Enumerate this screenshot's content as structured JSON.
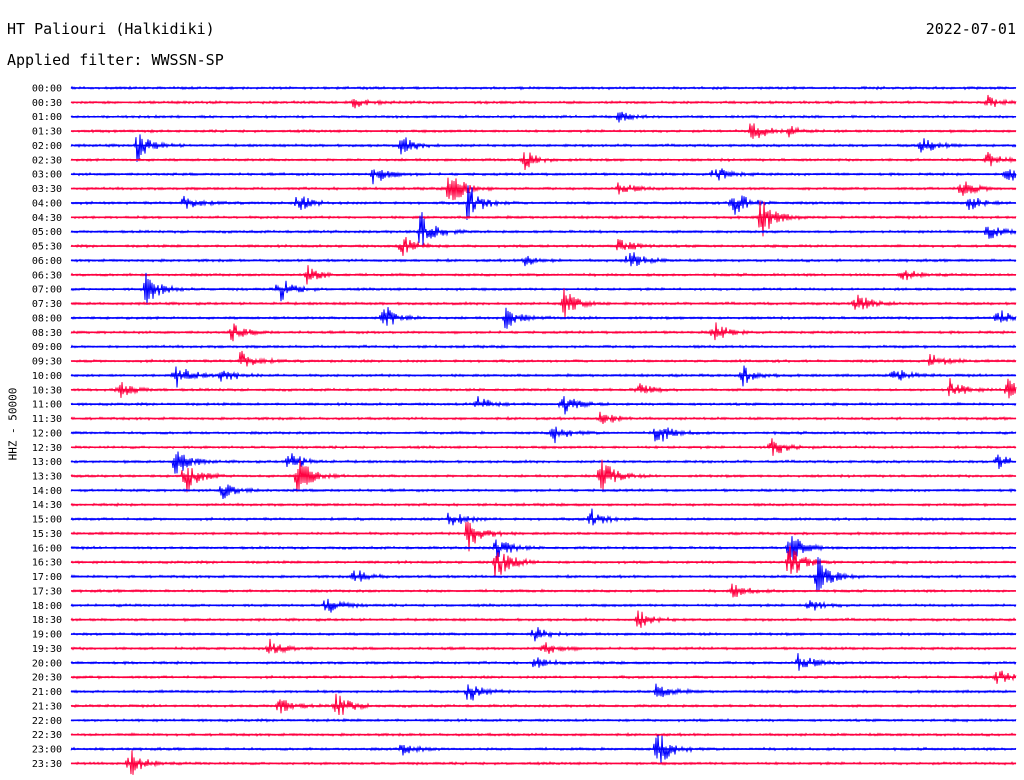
{
  "header": {
    "station": "HT Paliouri (Halkidiki)",
    "date": "2022-07-01",
    "filter": "Applied filter: WWSSN-SP"
  },
  "chart_data": {
    "type": "line",
    "title": "HT Paliouri (Halkidiki)",
    "subtitle": "Applied filter: WWSSN-SP",
    "ylabel": "HHZ - 50000",
    "xlabel": "",
    "colors": [
      "#0000ff",
      "#ff0040"
    ],
    "grid": false,
    "legend": "none",
    "rows": [
      {
        "label": "00:00",
        "events": []
      },
      {
        "label": "00:30",
        "events": [
          [
            0.3,
            0.35
          ],
          [
            0.97,
            0.3
          ]
        ]
      },
      {
        "label": "01:00",
        "events": [
          [
            0.58,
            0.25
          ]
        ]
      },
      {
        "label": "01:30",
        "events": [
          [
            0.72,
            0.55
          ],
          [
            0.76,
            0.25
          ]
        ]
      },
      {
        "label": "02:00",
        "events": [
          [
            0.07,
            0.75
          ],
          [
            0.35,
            0.45
          ],
          [
            0.9,
            0.45
          ]
        ]
      },
      {
        "label": "02:30",
        "events": [
          [
            0.48,
            0.45
          ],
          [
            0.97,
            0.35
          ]
        ]
      },
      {
        "label": "03:00",
        "events": [
          [
            0.32,
            0.55
          ],
          [
            0.68,
            0.45
          ],
          [
            0.99,
            0.55
          ]
        ]
      },
      {
        "label": "03:30",
        "events": [
          [
            0.4,
            1.0
          ],
          [
            0.58,
            0.35
          ],
          [
            0.94,
            0.5
          ]
        ]
      },
      {
        "label": "04:00",
        "events": [
          [
            0.12,
            0.45
          ],
          [
            0.24,
            0.45
          ],
          [
            0.42,
            1.0
          ],
          [
            0.7,
            0.75
          ],
          [
            0.95,
            0.4
          ]
        ]
      },
      {
        "label": "04:30",
        "events": [
          [
            0.73,
            1.0
          ]
        ]
      },
      {
        "label": "05:00",
        "events": [
          [
            0.37,
            1.0
          ],
          [
            0.97,
            0.4
          ]
        ]
      },
      {
        "label": "05:30",
        "events": [
          [
            0.35,
            0.55
          ],
          [
            0.58,
            0.45
          ]
        ]
      },
      {
        "label": "06:00",
        "events": [
          [
            0.59,
            0.55
          ],
          [
            0.48,
            0.3
          ]
        ]
      },
      {
        "label": "06:30",
        "events": [
          [
            0.25,
            0.45
          ],
          [
            0.88,
            0.35
          ]
        ]
      },
      {
        "label": "07:00",
        "events": [
          [
            0.08,
            0.9
          ],
          [
            0.22,
            0.65
          ]
        ]
      },
      {
        "label": "07:30",
        "events": [
          [
            0.52,
            0.8
          ],
          [
            0.83,
            0.6
          ]
        ]
      },
      {
        "label": "08:00",
        "events": [
          [
            0.33,
            0.7
          ],
          [
            0.46,
            0.55
          ],
          [
            0.98,
            0.45
          ]
        ]
      },
      {
        "label": "08:30",
        "events": [
          [
            0.17,
            0.45
          ],
          [
            0.68,
            0.5
          ]
        ]
      },
      {
        "label": "09:00",
        "events": []
      },
      {
        "label": "09:30",
        "events": [
          [
            0.18,
            0.55
          ],
          [
            0.91,
            0.45
          ]
        ]
      },
      {
        "label": "10:00",
        "events": [
          [
            0.11,
            0.75
          ],
          [
            0.16,
            0.45
          ],
          [
            0.71,
            0.5
          ],
          [
            0.87,
            0.4
          ]
        ]
      },
      {
        "label": "10:30",
        "events": [
          [
            0.05,
            0.45
          ],
          [
            0.6,
            0.35
          ],
          [
            0.93,
            0.5
          ],
          [
            0.99,
            0.55
          ]
        ]
      },
      {
        "label": "11:00",
        "events": [
          [
            0.52,
            0.55
          ],
          [
            0.43,
            0.4
          ]
        ]
      },
      {
        "label": "11:30",
        "events": [
          [
            0.56,
            0.5
          ]
        ]
      },
      {
        "label": "12:00",
        "events": [
          [
            0.51,
            0.5
          ],
          [
            0.62,
            0.65
          ]
        ]
      },
      {
        "label": "12:30",
        "events": [
          [
            0.74,
            0.55
          ]
        ]
      },
      {
        "label": "13:00",
        "events": [
          [
            0.11,
            0.75
          ],
          [
            0.23,
            0.55
          ],
          [
            0.98,
            0.4
          ]
        ]
      },
      {
        "label": "13:30",
        "events": [
          [
            0.12,
            0.95
          ],
          [
            0.24,
            1.0
          ],
          [
            0.56,
            0.95
          ]
        ]
      },
      {
        "label": "14:00",
        "events": [
          [
            0.16,
            0.45
          ]
        ]
      },
      {
        "label": "14:30",
        "events": []
      },
      {
        "label": "15:00",
        "events": [
          [
            0.4,
            0.55
          ],
          [
            0.55,
            0.5
          ]
        ]
      },
      {
        "label": "15:30",
        "events": [
          [
            0.42,
            1.0
          ]
        ]
      },
      {
        "label": "16:00",
        "events": [
          [
            0.45,
            0.6
          ],
          [
            0.76,
            0.8
          ]
        ]
      },
      {
        "label": "16:30",
        "events": [
          [
            0.45,
            1.0
          ],
          [
            0.76,
            0.9
          ]
        ]
      },
      {
        "label": "17:00",
        "events": [
          [
            0.79,
            0.95
          ],
          [
            0.3,
            0.4
          ]
        ]
      },
      {
        "label": "17:30",
        "events": [
          [
            0.7,
            0.4
          ]
        ]
      },
      {
        "label": "18:00",
        "events": [
          [
            0.27,
            0.45
          ],
          [
            0.78,
            0.35
          ]
        ]
      },
      {
        "label": "18:30",
        "events": [
          [
            0.6,
            0.45
          ]
        ]
      },
      {
        "label": "19:00",
        "events": [
          [
            0.49,
            0.45
          ]
        ]
      },
      {
        "label": "19:30",
        "events": [
          [
            0.21,
            0.45
          ],
          [
            0.5,
            0.4
          ]
        ]
      },
      {
        "label": "20:00",
        "events": [
          [
            0.77,
            0.5
          ],
          [
            0.49,
            0.3
          ]
        ]
      },
      {
        "label": "20:30",
        "events": [
          [
            0.98,
            0.4
          ]
        ]
      },
      {
        "label": "21:00",
        "events": [
          [
            0.42,
            0.55
          ],
          [
            0.62,
            0.45
          ]
        ]
      },
      {
        "label": "21:30",
        "events": [
          [
            0.28,
            0.7
          ],
          [
            0.22,
            0.45
          ]
        ]
      },
      {
        "label": "22:00",
        "events": []
      },
      {
        "label": "22:30",
        "events": []
      },
      {
        "label": "23:00",
        "events": [
          [
            0.62,
            1.0
          ],
          [
            0.35,
            0.3
          ]
        ]
      },
      {
        "label": "23:30",
        "events": [
          [
            0.06,
            0.85
          ]
        ]
      }
    ]
  }
}
